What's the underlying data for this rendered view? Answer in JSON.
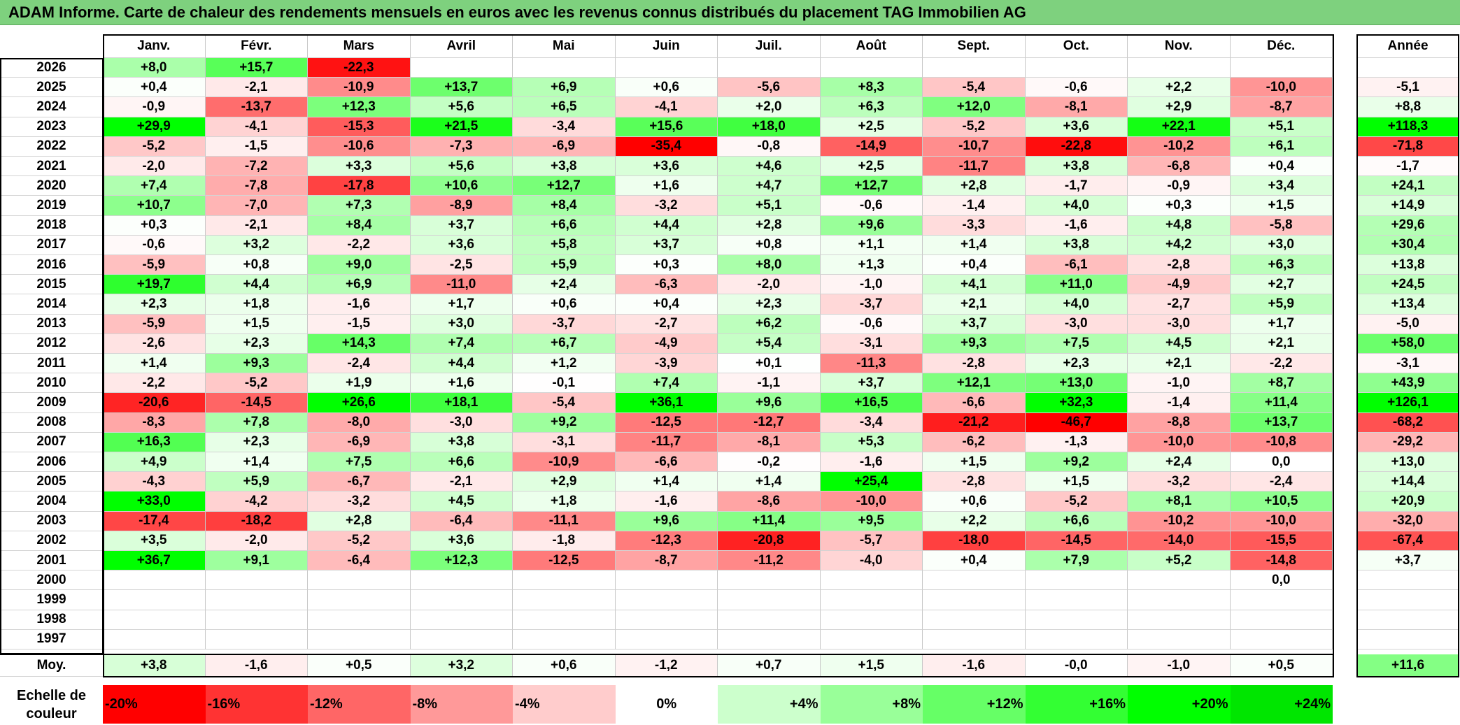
{
  "title": "ADAM Informe. Carte de chaleur des rendements mensuels en euros avec les revenus connus distribués du placement TAG Immobilien AG",
  "chart_data": {
    "type": "heatmap",
    "title": "ADAM Informe. Carte de chaleur des rendements mensuels en euros avec les revenus connus distribués du placement TAG Immobilien AG",
    "columns": [
      "Janv.",
      "Févr.",
      "Mars",
      "Avril",
      "Mai",
      "Juin",
      "Juil.",
      "Août",
      "Sept.",
      "Oct.",
      "Nov.",
      "Déc."
    ],
    "year_column_label": "Année",
    "rows": [
      {
        "year": "2026",
        "values": [
          "+8,0",
          "+15,7",
          "-22,3",
          "",
          "",
          "",
          "",
          "",
          "",
          "",
          "",
          ""
        ],
        "annual": ""
      },
      {
        "year": "2025",
        "values": [
          "+0,4",
          "-2,1",
          "-10,9",
          "+13,7",
          "+6,9",
          "+0,6",
          "-5,6",
          "+8,3",
          "-5,4",
          "-0,6",
          "+2,2",
          "-10,0"
        ],
        "annual": "-5,1"
      },
      {
        "year": "2024",
        "values": [
          "-0,9",
          "-13,7",
          "+12,3",
          "+5,6",
          "+6,5",
          "-4,1",
          "+2,0",
          "+6,3",
          "+12,0",
          "-8,1",
          "+2,9",
          "-8,7"
        ],
        "annual": "+8,8"
      },
      {
        "year": "2023",
        "values": [
          "+29,9",
          "-4,1",
          "-15,3",
          "+21,5",
          "-3,4",
          "+15,6",
          "+18,0",
          "+2,5",
          "-5,2",
          "+3,6",
          "+22,1",
          "+5,1"
        ],
        "annual": "+118,3"
      },
      {
        "year": "2022",
        "values": [
          "-5,2",
          "-1,5",
          "-10,6",
          "-7,3",
          "-6,9",
          "-35,4",
          "-0,8",
          "-14,9",
          "-10,7",
          "-22,8",
          "-10,2",
          "+6,1"
        ],
        "annual": "-71,8"
      },
      {
        "year": "2021",
        "values": [
          "-2,0",
          "-7,2",
          "+3,3",
          "+5,6",
          "+3,8",
          "+3,6",
          "+4,6",
          "+2,5",
          "-11,7",
          "+3,8",
          "-6,8",
          "+0,4"
        ],
        "annual": "-1,7"
      },
      {
        "year": "2020",
        "values": [
          "+7,4",
          "-7,8",
          "-17,8",
          "+10,6",
          "+12,7",
          "+1,6",
          "+4,7",
          "+12,7",
          "+2,8",
          "-1,7",
          "-0,9",
          "+3,4"
        ],
        "annual": "+24,1"
      },
      {
        "year": "2019",
        "values": [
          "+10,7",
          "-7,0",
          "+7,3",
          "-8,9",
          "+8,4",
          "-3,2",
          "+5,1",
          "-0,6",
          "-1,4",
          "+4,0",
          "+0,3",
          "+1,5"
        ],
        "annual": "+14,9"
      },
      {
        "year": "2018",
        "values": [
          "+0,3",
          "-2,1",
          "+8,4",
          "+3,7",
          "+6,6",
          "+4,4",
          "+2,8",
          "+9,6",
          "-3,3",
          "-1,6",
          "+4,8",
          "-5,8"
        ],
        "annual": "+29,6"
      },
      {
        "year": "2017",
        "values": [
          "-0,6",
          "+3,2",
          "-2,2",
          "+3,6",
          "+5,8",
          "+3,7",
          "+0,8",
          "+1,1",
          "+1,4",
          "+3,8",
          "+4,2",
          "+3,0"
        ],
        "annual": "+30,4"
      },
      {
        "year": "2016",
        "values": [
          "-5,9",
          "+0,8",
          "+9,0",
          "-2,5",
          "+5,9",
          "+0,3",
          "+8,0",
          "+1,3",
          "+0,4",
          "-6,1",
          "-2,8",
          "+6,3"
        ],
        "annual": "+13,8"
      },
      {
        "year": "2015",
        "values": [
          "+19,7",
          "+4,4",
          "+6,9",
          "-11,0",
          "+2,4",
          "-6,3",
          "-2,0",
          "-1,0",
          "+4,1",
          "+11,0",
          "-4,9",
          "+2,7"
        ],
        "annual": "+24,5"
      },
      {
        "year": "2014",
        "values": [
          "+2,3",
          "+1,8",
          "-1,6",
          "+1,7",
          "+0,6",
          "+0,4",
          "+2,3",
          "-3,7",
          "+2,1",
          "+4,0",
          "-2,7",
          "+5,9"
        ],
        "annual": "+13,4"
      },
      {
        "year": "2013",
        "values": [
          "-5,9",
          "+1,5",
          "-1,5",
          "+3,0",
          "-3,7",
          "-2,7",
          "+6,2",
          "-0,6",
          "+3,7",
          "-3,0",
          "-3,0",
          "+1,7"
        ],
        "annual": "-5,0"
      },
      {
        "year": "2012",
        "values": [
          "-2,6",
          "+2,3",
          "+14,3",
          "+7,4",
          "+6,7",
          "-4,9",
          "+5,4",
          "-3,1",
          "+9,3",
          "+7,5",
          "+4,5",
          "+2,1"
        ],
        "annual": "+58,0"
      },
      {
        "year": "2011",
        "values": [
          "+1,4",
          "+9,3",
          "-2,4",
          "+4,4",
          "+1,2",
          "-3,9",
          "+0,1",
          "-11,3",
          "-2,8",
          "+2,3",
          "+2,1",
          "-2,2"
        ],
        "annual": "-3,1"
      },
      {
        "year": "2010",
        "values": [
          "-2,2",
          "-5,2",
          "+1,9",
          "+1,6",
          "-0,1",
          "+7,4",
          "-1,1",
          "+3,7",
          "+12,1",
          "+13,0",
          "-1,0",
          "+8,7"
        ],
        "annual": "+43,9"
      },
      {
        "year": "2009",
        "values": [
          "-20,6",
          "-14,5",
          "+26,6",
          "+18,1",
          "-5,4",
          "+36,1",
          "+9,6",
          "+16,5",
          "-6,6",
          "+32,3",
          "-1,4",
          "+11,4"
        ],
        "annual": "+126,1"
      },
      {
        "year": "2008",
        "values": [
          "-8,3",
          "+7,8",
          "-8,0",
          "-3,0",
          "+9,2",
          "-12,5",
          "-12,7",
          "-3,4",
          "-21,2",
          "-46,7",
          "-8,8",
          "+13,7"
        ],
        "annual": "-68,2"
      },
      {
        "year": "2007",
        "values": [
          "+16,3",
          "+2,3",
          "-6,9",
          "+3,8",
          "-3,1",
          "-11,7",
          "-8,1",
          "+5,3",
          "-6,2",
          "-1,3",
          "-10,0",
          "-10,8"
        ],
        "annual": "-29,2"
      },
      {
        "year": "2006",
        "values": [
          "+4,9",
          "+1,4",
          "+7,5",
          "+6,6",
          "-10,9",
          "-6,6",
          "-0,2",
          "-1,6",
          "+1,5",
          "+9,2",
          "+2,4",
          "0,0"
        ],
        "annual": "+13,0"
      },
      {
        "year": "2005",
        "values": [
          "-4,3",
          "+5,9",
          "-6,7",
          "-2,1",
          "+2,9",
          "+1,4",
          "+1,4",
          "+25,4",
          "-2,8",
          "+1,5",
          "-3,2",
          "-2,4"
        ],
        "annual": "+14,4"
      },
      {
        "year": "2004",
        "values": [
          "+33,0",
          "-4,2",
          "-3,2",
          "+4,5",
          "+1,8",
          "-1,6",
          "-8,6",
          "-10,0",
          "+0,6",
          "-5,2",
          "+8,1",
          "+10,5"
        ],
        "annual": "+20,9"
      },
      {
        "year": "2003",
        "values": [
          "-17,4",
          "-18,2",
          "+2,8",
          "-6,4",
          "-11,1",
          "+9,6",
          "+11,4",
          "+9,5",
          "+2,2",
          "+6,6",
          "-10,2",
          "-10,0"
        ],
        "annual": "-32,0"
      },
      {
        "year": "2002",
        "values": [
          "+3,5",
          "-2,0",
          "-5,2",
          "+3,6",
          "-1,8",
          "-12,3",
          "-20,8",
          "-5,7",
          "-18,0",
          "-14,5",
          "-14,0",
          "-15,5"
        ],
        "annual": "-67,4"
      },
      {
        "year": "2001",
        "values": [
          "+36,7",
          "+9,1",
          "-6,4",
          "+12,3",
          "-12,5",
          "-8,7",
          "-11,2",
          "-4,0",
          "+0,4",
          "+7,9",
          "+5,2",
          "-14,8"
        ],
        "annual": "+3,7"
      },
      {
        "year": "2000",
        "values": [
          "",
          "",
          "",
          "",
          "",
          "",
          "",
          "",
          "",
          "",
          "",
          "0,0"
        ],
        "annual": ""
      },
      {
        "year": "1999",
        "values": [
          "",
          "",
          "",
          "",
          "",
          "",
          "",
          "",
          "",
          "",
          "",
          ""
        ],
        "annual": ""
      },
      {
        "year": "1998",
        "values": [
          "",
          "",
          "",
          "",
          "",
          "",
          "",
          "",
          "",
          "",
          "",
          ""
        ],
        "annual": ""
      },
      {
        "year": "1997",
        "values": [
          "",
          "",
          "",
          "",
          "",
          "",
          "",
          "",
          "",
          "",
          "",
          ""
        ],
        "annual": ""
      }
    ],
    "average": {
      "label": "Moy.",
      "values": [
        "+3,8",
        "-1,6",
        "+0,5",
        "+3,2",
        "+0,6",
        "-1,2",
        "+0,7",
        "+1,5",
        "-1,6",
        "-0,0",
        "-1,0",
        "+0,5"
      ],
      "annual": "+11,6"
    },
    "color_scale": {
      "label_line1": "Echelle de",
      "label_line2": "couleur",
      "steps": [
        {
          "label": "-20%",
          "value": -20,
          "color": "#ff0000"
        },
        {
          "label": "-16%",
          "value": -16,
          "color": "#ff3333"
        },
        {
          "label": "-12%",
          "value": -12,
          "color": "#ff6666"
        },
        {
          "label": "-8%",
          "value": -8,
          "color": "#ff9999"
        },
        {
          "label": "-4%",
          "value": -4,
          "color": "#ffcccc"
        },
        {
          "label": "0%",
          "value": 0,
          "color": "#ffffff"
        },
        {
          "label": "+4%",
          "value": 4,
          "color": "#ccffcc"
        },
        {
          "label": "+8%",
          "value": 8,
          "color": "#99ff99"
        },
        {
          "label": "+12%",
          "value": 12,
          "color": "#66ff66"
        },
        {
          "label": "+16%",
          "value": 16,
          "color": "#33ff33"
        },
        {
          "label": "+20%",
          "value": 20,
          "color": "#00ff00"
        },
        {
          "label": "+24%",
          "value": 24,
          "color": "#00e600"
        }
      ]
    }
  }
}
